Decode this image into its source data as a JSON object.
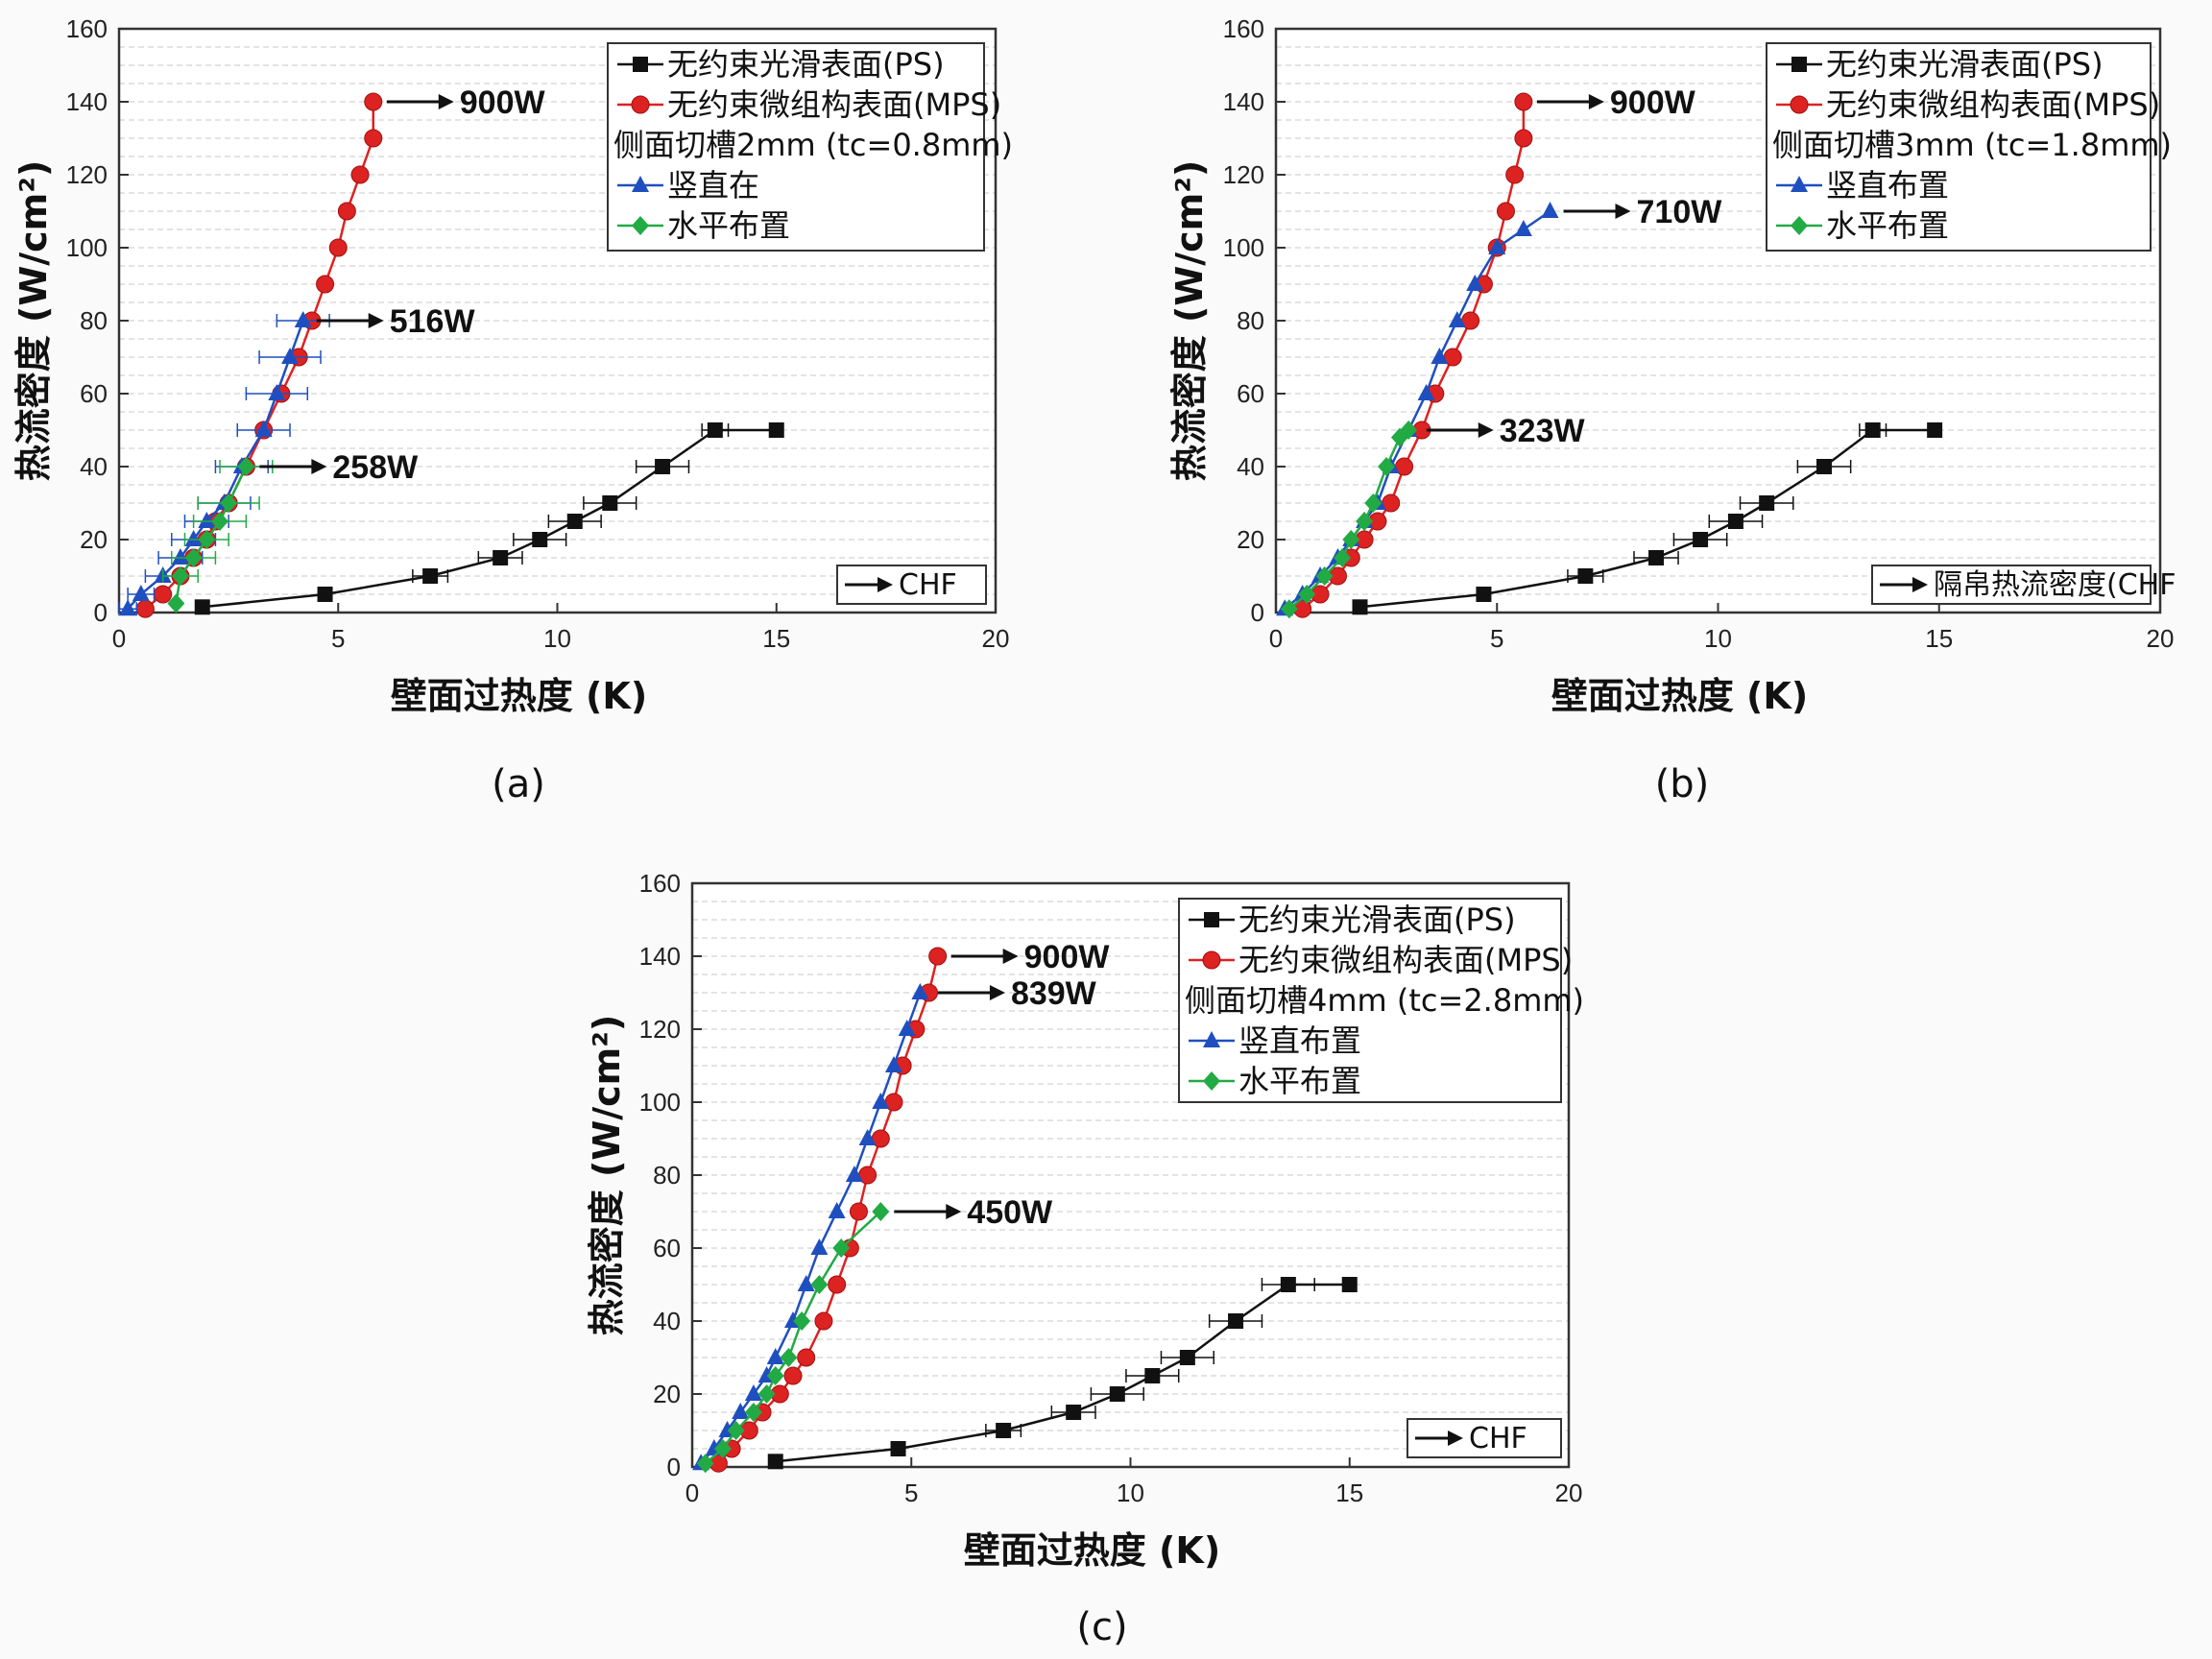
{
  "chart_data": [
    {
      "type": "line",
      "panel_label": "(a)",
      "xlabel": "壁面过热度 (K)",
      "ylabel": "热流密度 (W/cm²)",
      "xlim": [
        0,
        20
      ],
      "ylim": [
        0,
        160
      ],
      "xticks": [
        "0",
        "5",
        "10",
        "15",
        "20"
      ],
      "yticks": [
        "0",
        "20",
        "40",
        "60",
        "80",
        "100",
        "120",
        "140",
        "160"
      ],
      "grid": true,
      "legend_position": "top-right",
      "legend": [
        "无约束光滑表面(PS)",
        "无约束微组构表面(MPS)",
        "侧面切槽2mm (tc=0.8mm)",
        "竖直在",
        "水平布置"
      ],
      "chf_box": "CHF",
      "series": [
        {
          "name": "无约束光滑表面(PS)",
          "color": "#111111",
          "marker": "square",
          "x": [
            1.9,
            4.7,
            7.1,
            8.7,
            9.6,
            10.4,
            11.2,
            12.4,
            13.6,
            15.0
          ],
          "y": [
            1.5,
            5,
            10,
            15,
            20,
            25,
            30,
            40,
            50,
            50
          ],
          "xerr": [
            0,
            0,
            0.4,
            0.5,
            0.6,
            0.6,
            0.6,
            0.6,
            0.3,
            0
          ]
        },
        {
          "name": "无约束微组构表面(MPS)",
          "color": "#dd2222",
          "marker": "circle",
          "x": [
            0.6,
            1.0,
            1.4,
            1.7,
            2.0,
            2.2,
            2.5,
            2.9,
            3.3,
            3.7,
            4.1,
            4.4,
            4.7,
            5.0,
            5.2,
            5.5,
            5.8
          ],
          "y": [
            1,
            5,
            10,
            15,
            20,
            25,
            30,
            40,
            50,
            60,
            70,
            80,
            90,
            100,
            110,
            120,
            130
          ],
          "xerr": []
        },
        {
          "name": "竖直在",
          "color": "#1f4fbf",
          "marker": "triangle",
          "x": [
            0.2,
            0.5,
            1.0,
            1.4,
            1.7,
            2.0,
            2.4,
            2.8,
            3.3,
            3.6,
            3.9,
            4.2
          ],
          "y": [
            1,
            5,
            10,
            15,
            20,
            25,
            30,
            40,
            50,
            60,
            70,
            80
          ],
          "xerr": [
            0.2,
            0.3,
            0.4,
            0.5,
            0.5,
            0.5,
            0.6,
            0.6,
            0.6,
            0.7,
            0.7,
            0.6
          ]
        },
        {
          "name": "水平布置",
          "color": "#22aa44",
          "marker": "diamond",
          "x": [
            1.3,
            1.4,
            1.7,
            2.0,
            2.3,
            2.5,
            2.9
          ],
          "y": [
            2.5,
            10,
            15,
            20,
            25,
            30,
            40
          ],
          "xerr": [
            0,
            0.4,
            0.5,
            0.5,
            0.6,
            0.7,
            0.6
          ]
        }
      ],
      "annotations": [
        {
          "text": "900W",
          "x": 5.8,
          "y": 140,
          "series": "无约束微组构表面(MPS)"
        },
        {
          "text": "516W",
          "x": 4.2,
          "y": 80,
          "series": "竖直在"
        },
        {
          "text": "258W",
          "x": 2.9,
          "y": 40,
          "series": "水平布置"
        }
      ],
      "mps_last": {
        "x": 5.8,
        "y": 140
      }
    },
    {
      "type": "line",
      "panel_label": "(b)",
      "xlabel": "壁面过热度 (K)",
      "ylabel": "热流密度 (W/cm²)",
      "xlim": [
        0,
        20
      ],
      "ylim": [
        0,
        160
      ],
      "xticks": [
        "0",
        "5",
        "10",
        "15",
        "20"
      ],
      "yticks": [
        "0",
        "20",
        "40",
        "60",
        "80",
        "100",
        "120",
        "140",
        "160"
      ],
      "grid": true,
      "legend_position": "top-right",
      "legend": [
        "无约束光滑表面(PS)",
        "无约束微组构表面(MPS)",
        "侧面切槽3mm (tc=1.8mm)",
        "竖直布置",
        "水平布置"
      ],
      "chf_box": "隔帛热流密度(CHF",
      "series": [
        {
          "name": "无约束光滑表面(PS)",
          "color": "#111111",
          "marker": "square",
          "x": [
            1.9,
            4.7,
            7.0,
            8.6,
            9.6,
            10.4,
            11.1,
            12.4,
            13.5,
            14.9
          ],
          "y": [
            1.5,
            5,
            10,
            15,
            20,
            25,
            30,
            40,
            50,
            50
          ],
          "xerr": [
            0,
            0,
            0.4,
            0.5,
            0.6,
            0.6,
            0.6,
            0.6,
            0.3,
            0
          ]
        },
        {
          "name": "无约束微组构表面(MPS)",
          "color": "#dd2222",
          "marker": "circle",
          "x": [
            0.6,
            1.0,
            1.4,
            1.7,
            2.0,
            2.3,
            2.6,
            2.9,
            3.3,
            3.6,
            4.0,
            4.4,
            4.7,
            5.0,
            5.2,
            5.4,
            5.6
          ],
          "y": [
            1,
            5,
            10,
            15,
            20,
            25,
            30,
            40,
            50,
            60,
            70,
            80,
            90,
            100,
            110,
            120,
            130
          ],
          "xerr": []
        },
        {
          "name": "竖直布置",
          "color": "#1f4fbf",
          "marker": "triangle",
          "x": [
            0.2,
            0.6,
            1.0,
            1.4,
            1.7,
            2.0,
            2.3,
            2.6,
            3.0,
            3.4,
            3.7,
            4.1,
            4.5,
            5.0,
            5.6,
            6.2
          ],
          "y": [
            1,
            5,
            10,
            15,
            20,
            25,
            30,
            40,
            50,
            60,
            70,
            80,
            90,
            100,
            105,
            110
          ],
          "xerr": []
        },
        {
          "name": "水平布置",
          "color": "#22aa44",
          "marker": "diamond",
          "x": [
            0.3,
            0.7,
            1.1,
            1.5,
            1.7,
            2.0,
            2.2,
            2.5,
            2.8,
            3.0
          ],
          "y": [
            1,
            5,
            10,
            15,
            20,
            25,
            30,
            40,
            48,
            50
          ],
          "xerr": []
        }
      ],
      "annotations": [
        {
          "text": "900W",
          "x": 5.6,
          "y": 140,
          "series": "无约束微组构表面(MPS)"
        },
        {
          "text": "710W",
          "x": 6.2,
          "y": 110,
          "series": "竖直布置"
        },
        {
          "text": "323W",
          "x": 3.1,
          "y": 50,
          "series": "水平布置"
        }
      ],
      "mps_last": {
        "x": 5.6,
        "y": 140
      }
    },
    {
      "type": "line",
      "panel_label": "(c)",
      "xlabel": "壁面过热度 (K)",
      "ylabel": "热流密度 (W/cm²)",
      "xlim": [
        0,
        20
      ],
      "ylim": [
        0,
        160
      ],
      "xticks": [
        "0",
        "5",
        "10",
        "15",
        "20"
      ],
      "yticks": [
        "0",
        "20",
        "40",
        "60",
        "80",
        "100",
        "120",
        "140",
        "160"
      ],
      "grid": true,
      "legend_position": "top-right",
      "legend": [
        "无约束光滑表面(PS)",
        "无约束微组构表面(MPS)",
        "侧面切槽4mm (tc=2.8mm)",
        "竖直布置",
        "水平布置"
      ],
      "chf_box": "CHF",
      "series": [
        {
          "name": "无约束光滑表面(PS)",
          "color": "#111111",
          "marker": "square",
          "x": [
            1.9,
            4.7,
            7.1,
            8.7,
            9.7,
            10.5,
            11.3,
            12.4,
            13.6,
            15.0
          ],
          "y": [
            1.5,
            5,
            10,
            15,
            20,
            25,
            30,
            40,
            50,
            50
          ],
          "xerr": [
            0,
            0,
            0.4,
            0.5,
            0.6,
            0.6,
            0.6,
            0.6,
            0.6,
            0
          ]
        },
        {
          "name": "无约束微组构表面(MPS)",
          "color": "#dd2222",
          "marker": "circle",
          "x": [
            0.6,
            0.9,
            1.3,
            1.6,
            2.0,
            2.3,
            2.6,
            3.0,
            3.3,
            3.6,
            3.8,
            4.0,
            4.3,
            4.6,
            4.8,
            5.1,
            5.4
          ],
          "y": [
            1,
            5,
            10,
            15,
            20,
            25,
            30,
            40,
            50,
            60,
            70,
            80,
            90,
            100,
            110,
            120,
            130
          ],
          "xerr": []
        },
        {
          "name": "竖直布置",
          "color": "#1f4fbf",
          "marker": "triangle",
          "x": [
            0.2,
            0.5,
            0.8,
            1.1,
            1.4,
            1.7,
            1.9,
            2.3,
            2.6,
            2.9,
            3.3,
            3.7,
            4.0,
            4.3,
            4.6,
            4.9,
            5.2
          ],
          "y": [
            1,
            5,
            10,
            15,
            20,
            25,
            30,
            40,
            50,
            60,
            70,
            80,
            90,
            100,
            110,
            120,
            130
          ],
          "xerr": []
        },
        {
          "name": "水平布置",
          "color": "#22aa44",
          "marker": "diamond",
          "x": [
            0.3,
            0.7,
            1.0,
            1.4,
            1.7,
            1.9,
            2.2,
            2.5,
            2.9,
            3.4,
            4.3
          ],
          "y": [
            1,
            5,
            10,
            15,
            20,
            25,
            30,
            40,
            50,
            60,
            70
          ],
          "xerr": []
        }
      ],
      "annotations": [
        {
          "text": "900W",
          "x": 5.6,
          "y": 140,
          "series": "无约束微组构表面(MPS)"
        },
        {
          "text": "839W",
          "x": 5.3,
          "y": 130,
          "series": "竖直布置"
        },
        {
          "text": "450W",
          "x": 4.3,
          "y": 70,
          "series": "水平布置"
        }
      ],
      "mps_last": {
        "x": 5.6,
        "y": 140
      }
    }
  ]
}
